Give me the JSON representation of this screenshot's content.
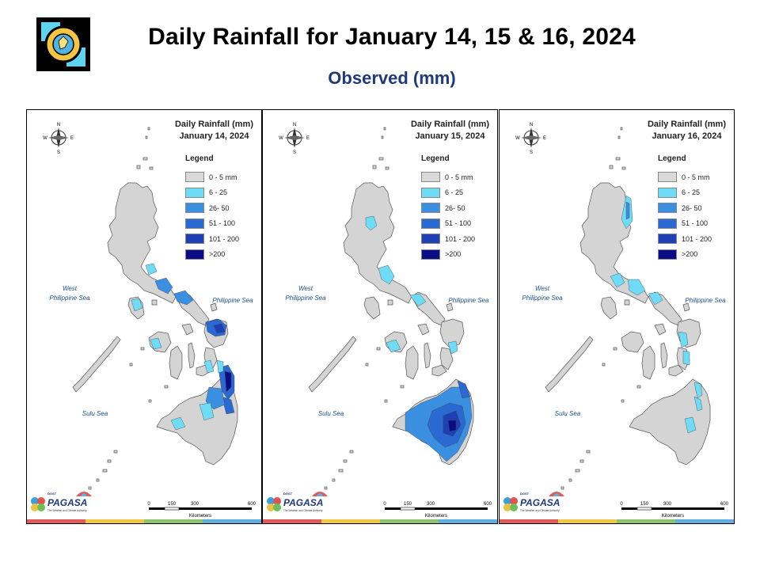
{
  "header": {
    "title": "Daily Rainfall for January 14, 15 & 16, 2024",
    "subtitle": "Observed (mm)"
  },
  "legend": {
    "title": "Legend",
    "classes": [
      {
        "label": "0 - 5 mm",
        "color": "#d9d9d9"
      },
      {
        "label": "6 - 25",
        "color": "#6fdcf7"
      },
      {
        "label": "26- 50",
        "color": "#3b8fe0"
      },
      {
        "label": "51 - 100",
        "color": "#2a68d2"
      },
      {
        "label": "101 - 200",
        "color": "#1f3fb5"
      },
      {
        "label": ">200",
        "color": "#0b0c86"
      }
    ]
  },
  "maps": [
    {
      "heading": "Daily Rainfall (mm)",
      "date": "January 14, 2024"
    },
    {
      "heading": "Daily Rainfall (mm)",
      "date": "January 15, 2024"
    },
    {
      "heading": "Daily Rainfall (mm)",
      "date": "January 16, 2024"
    }
  ],
  "seas": {
    "west": "West\nPhilippine Sea",
    "east": "Philippine Sea",
    "sulu": "Sulu Sea"
  },
  "compass": {
    "n": "N",
    "s": "S",
    "e": "E",
    "w": "W"
  },
  "scale": {
    "ticks": [
      "0",
      "150",
      "300",
      "600"
    ],
    "unit": "Kilometers"
  },
  "agency": {
    "small": "DOST",
    "name": "PAGASA",
    "tagline": "The Weather and Climate Authority"
  },
  "strip_colors": [
    "#e05a5a",
    "#f2c744",
    "#8fc46e",
    "#5fb0e0"
  ]
}
